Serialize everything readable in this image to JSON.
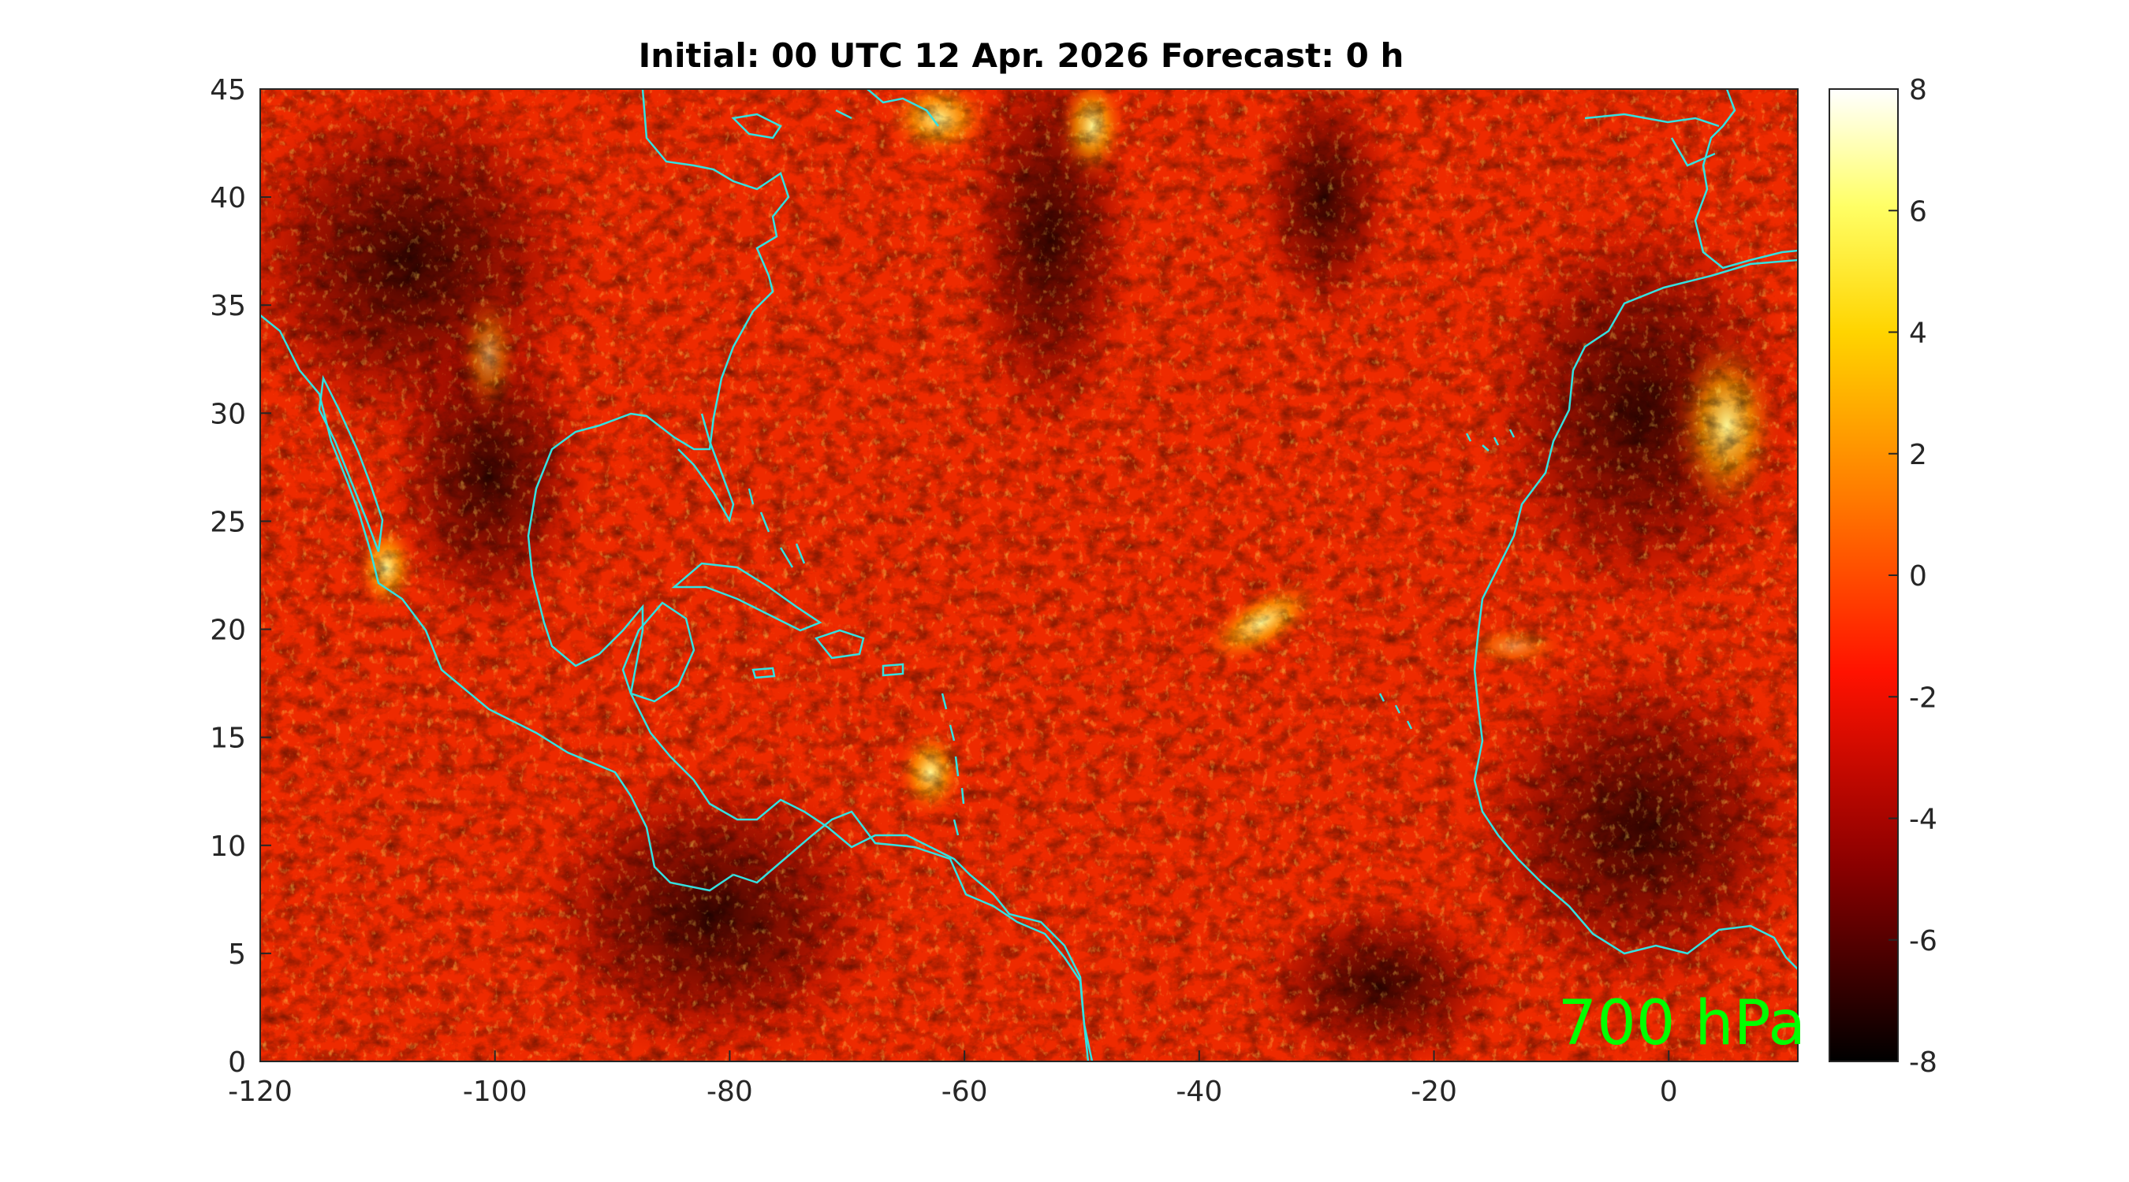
{
  "title": "Initial: 00 UTC 12 Apr. 2026 Forecast: 0 h",
  "annotation": "700 hPa",
  "map": {
    "x_range": [
      -120,
      11
    ],
    "y_range": [
      0,
      45
    ],
    "x_ticks": [
      "-120",
      "-100",
      "-80",
      "-60",
      "-40",
      "-20",
      "0"
    ],
    "y_ticks": [
      "0",
      "5",
      "10",
      "15",
      "20",
      "25",
      "30",
      "35",
      "40",
      "45"
    ],
    "coastline_color": "#35e0e0",
    "field_colormap": "hot"
  },
  "colorbar": {
    "range": [
      -8,
      8
    ],
    "ticks": [
      "8",
      "6",
      "4",
      "2",
      "0",
      "-2",
      "-4",
      "-6",
      "-8"
    ],
    "colors": [
      "#000000",
      "#8a0000",
      "#ff1200",
      "#ff7a00",
      "#ffd400",
      "#ffff66",
      "#ffffff"
    ]
  }
}
